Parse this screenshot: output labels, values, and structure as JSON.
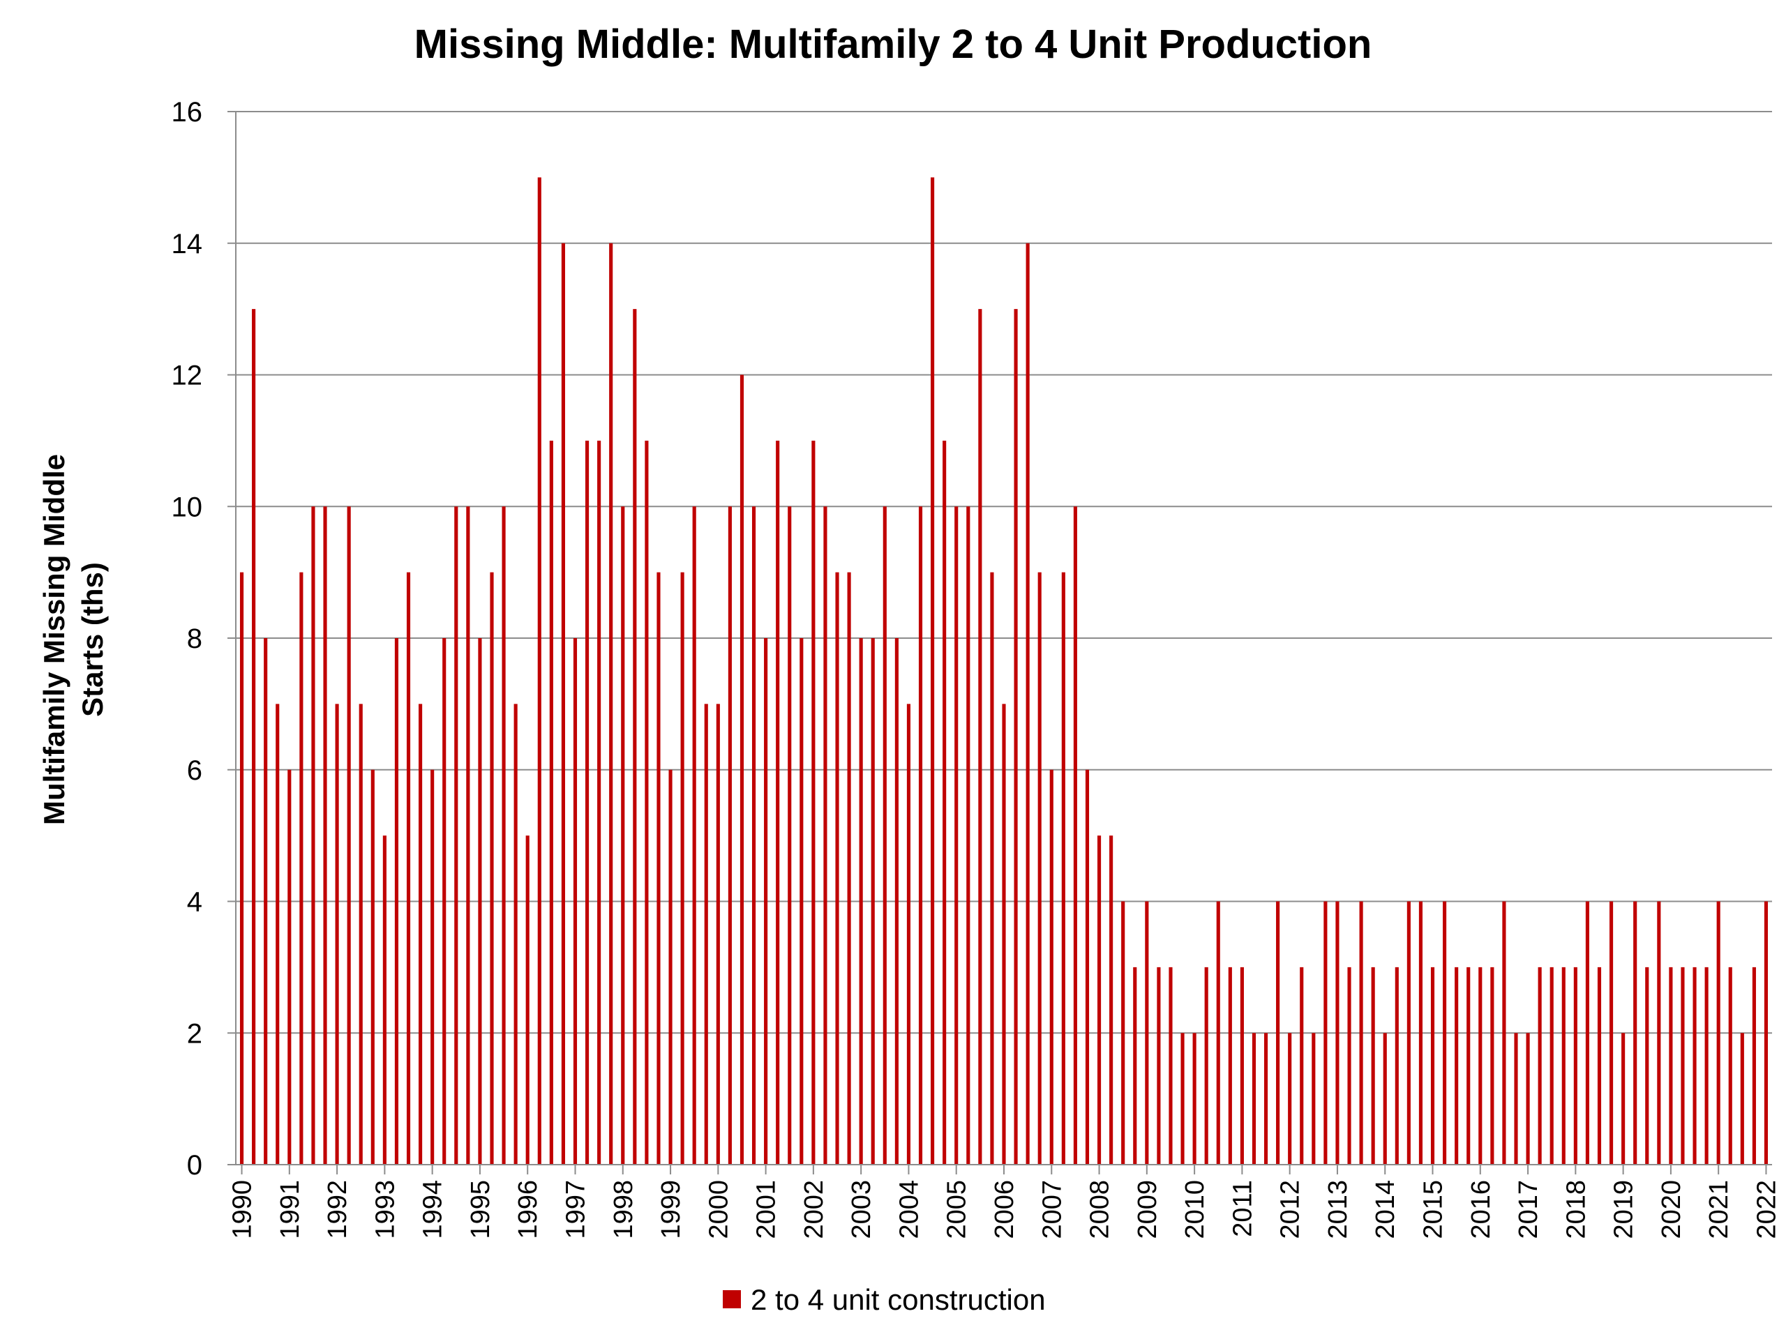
{
  "chart_data": {
    "type": "bar",
    "title": "Missing Middle: Multifamily 2 to 4 Unit Production",
    "xlabel": "",
    "ylabel_lines": [
      "Multifamily Missing Middle",
      "Starts (ths)"
    ],
    "ylim": [
      0,
      16
    ],
    "yticks": [
      0,
      2,
      4,
      6,
      8,
      10,
      12,
      14,
      16
    ],
    "grid": true,
    "legend_position": "bottom",
    "bar_color": "#C00000",
    "x_tick_labels": [
      "1990",
      "1991",
      "1992",
      "1993",
      "1994",
      "1995",
      "1996",
      "1997",
      "1998",
      "1999",
      "2000",
      "2001",
      "2002",
      "2003",
      "2004",
      "2005",
      "2006",
      "2007",
      "2008",
      "2009",
      "2010",
      "2011",
      "2012",
      "2013",
      "2014",
      "2015",
      "2016",
      "2017",
      "2018",
      "2019",
      "2020",
      "2021",
      "2022"
    ],
    "periods_per_label": 4,
    "series": [
      {
        "name": "2 to 4 unit construction",
        "values": [
          9,
          13,
          8,
          7,
          6,
          9,
          10,
          10,
          7,
          10,
          7,
          6,
          5,
          8,
          9,
          7,
          6,
          8,
          10,
          10,
          8,
          9,
          10,
          7,
          5,
          15,
          11,
          14,
          8,
          11,
          11,
          14,
          10,
          13,
          11,
          9,
          6,
          9,
          10,
          7,
          7,
          10,
          12,
          10,
          8,
          11,
          10,
          8,
          11,
          10,
          9,
          9,
          8,
          8,
          10,
          8,
          7,
          10,
          15,
          11,
          10,
          10,
          13,
          9,
          7,
          13,
          14,
          9,
          6,
          9,
          10,
          6,
          5,
          5,
          4,
          3,
          4,
          3,
          3,
          2,
          2,
          3,
          4,
          3,
          3,
          2,
          2,
          4,
          2,
          3,
          2,
          4,
          4,
          3,
          4,
          3,
          2,
          3,
          4,
          4,
          3,
          4,
          3,
          3,
          3,
          3,
          4,
          2,
          2,
          3,
          3,
          3,
          3,
          4,
          3,
          4,
          2,
          4,
          3,
          4,
          3,
          3,
          3,
          3,
          4,
          3,
          2,
          3,
          4
        ]
      }
    ]
  }
}
